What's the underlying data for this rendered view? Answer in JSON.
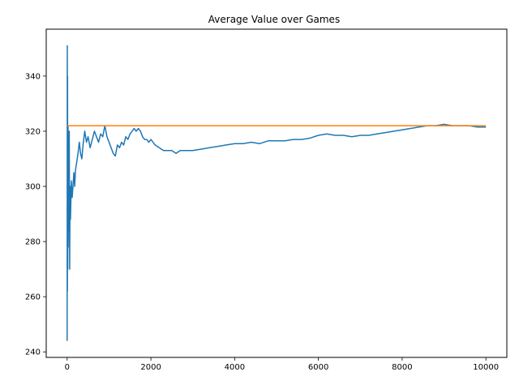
{
  "chart_data": {
    "type": "line",
    "title": "Average Value over Games",
    "xlabel": "",
    "ylabel": "",
    "xlim": [
      -500,
      10500
    ],
    "ylim": [
      238,
      357
    ],
    "xticks": [
      0,
      2000,
      4000,
      6000,
      8000,
      10000
    ],
    "yticks": [
      240,
      260,
      280,
      300,
      320,
      340
    ],
    "grid": false,
    "series": [
      {
        "color": "#1f77b4",
        "x": [
          0,
          3,
          6,
          10,
          14,
          20,
          25,
          30,
          40,
          50,
          60,
          70,
          80,
          100,
          120,
          140,
          160,
          180,
          200,
          230,
          260,
          290,
          320,
          350,
          380,
          420,
          460,
          500,
          550,
          600,
          650,
          700,
          750,
          800,
          850,
          900,
          950,
          1000,
          1050,
          1100,
          1150,
          1200,
          1250,
          1300,
          1350,
          1400,
          1450,
          1500,
          1550,
          1600,
          1650,
          1700,
          1750,
          1800,
          1850,
          1900,
          1950,
          2000,
          2100,
          2200,
          2300,
          2400,
          2500,
          2600,
          2700,
          2800,
          2900,
          3000,
          3200,
          3400,
          3600,
          3800,
          4000,
          4200,
          4400,
          4600,
          4800,
          5000,
          5200,
          5400,
          5600,
          5800,
          6000,
          6200,
          6400,
          6600,
          6800,
          7000,
          7200,
          7400,
          7600,
          7800,
          8000,
          8200,
          8400,
          8600,
          8800,
          9000,
          9200,
          9400,
          9600,
          9800,
          10000
        ],
        "y": [
          244,
          351,
          262,
          340,
          270,
          322,
          278,
          314,
          284,
          320,
          270,
          300,
          288,
          302,
          296,
          300,
          305,
          300,
          306,
          309,
          312,
          316,
          312,
          310,
          315,
          320,
          316,
          318,
          314,
          317,
          320,
          318,
          316,
          319,
          318,
          322,
          318,
          316,
          314,
          312,
          311,
          315,
          314,
          316,
          315,
          318,
          317,
          319,
          320,
          321,
          320,
          321,
          320,
          318,
          317,
          317,
          316,
          317,
          315,
          314,
          313,
          313,
          313,
          312,
          313,
          313,
          313,
          313,
          313.5,
          314,
          314.5,
          315,
          315.5,
          315.5,
          316,
          315.5,
          316.5,
          316.5,
          316.5,
          317,
          317,
          317.5,
          318.5,
          319,
          318.5,
          318.5,
          318,
          318.5,
          318.5,
          319,
          319.5,
          320,
          320.5,
          321,
          321.5,
          322,
          322,
          322.5,
          322,
          322,
          322,
          321.5,
          321.5
        ]
      },
      {
        "color": "#ff7f0e",
        "x": [
          0,
          10000
        ],
        "y": [
          322,
          322
        ]
      }
    ]
  }
}
